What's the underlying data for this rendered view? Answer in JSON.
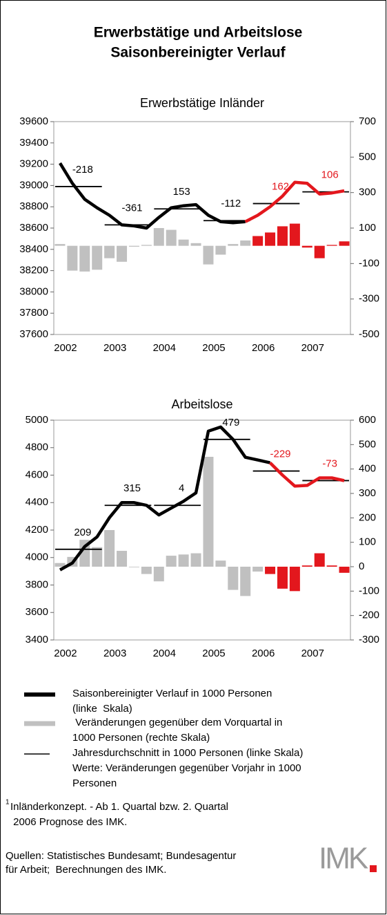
{
  "title": [
    "Erwerbstätige und Arbeitslose",
    "Saisonbereinigter Verlauf"
  ],
  "chart_data": [
    {
      "type": "combo",
      "title": "Erwerbstätige Inländer",
      "categories": [
        "2002",
        null,
        null,
        null,
        "2003",
        null,
        null,
        null,
        "2004",
        null,
        null,
        null,
        "2005",
        null,
        null,
        null,
        "2006",
        null,
        null,
        null,
        "2007",
        null,
        null,
        null
      ],
      "ylim": [
        37600,
        39600
      ],
      "yticks": [
        37600,
        37800,
        38000,
        38200,
        38400,
        38600,
        38800,
        39000,
        39200,
        39400,
        39600
      ],
      "y2lim": [
        -500,
        700
      ],
      "y2ticks": [
        -500,
        -300,
        -100,
        100,
        300,
        500,
        700
      ],
      "series": [
        {
          "type": "bar",
          "axis": "y2",
          "colors": [
            "#c0c0c0",
            "#c0c0c0",
            "#c0c0c0",
            "#c0c0c0",
            "#c0c0c0",
            "#c0c0c0",
            "#c0c0c0",
            "#c0c0c0",
            "#c0c0c0",
            "#c0c0c0",
            "#c0c0c0",
            "#c0c0c0",
            "#c0c0c0",
            "#c0c0c0",
            "#c0c0c0",
            "#c0c0c0",
            "#e3171d",
            "#e3171d",
            "#e3171d",
            "#e3171d",
            "#e3171d",
            "#e3171d",
            "#e3171d",
            "#e3171d"
          ],
          "values": [
            10,
            -140,
            -145,
            -135,
            -70,
            -90,
            -5,
            5,
            100,
            90,
            35,
            15,
            -105,
            -50,
            10,
            30,
            55,
            75,
            110,
            125,
            -10,
            -70,
            5,
            25
          ]
        },
        {
          "type": "line",
          "color": "#000000",
          "values": [
            39210,
            39020,
            38870,
            38790,
            38720,
            38630,
            38620,
            38600,
            38700,
            38790,
            38810,
            38820,
            38720,
            38660,
            38650,
            38660,
            null,
            null,
            null,
            null,
            null,
            null,
            null,
            null
          ]
        },
        {
          "type": "line",
          "color": "#e3171d",
          "values": [
            null,
            null,
            null,
            null,
            null,
            null,
            null,
            null,
            null,
            null,
            null,
            null,
            null,
            null,
            null,
            38660,
            38720,
            38800,
            38900,
            39030,
            39020,
            38920,
            38930,
            38950
          ]
        }
      ],
      "annual": {
        "values": [
          38990,
          38630,
          38780,
          38670,
          38830,
          38940
        ],
        "changes": [
          -218,
          -361,
          153,
          -112,
          162,
          106
        ],
        "colors": [
          "#000000",
          "#000000",
          "#000000",
          "#000000",
          "#e3171d",
          "#e3171d"
        ]
      }
    },
    {
      "type": "combo",
      "title": "Arbeitslose",
      "categories": [
        "2002",
        null,
        null,
        null,
        "2003",
        null,
        null,
        null,
        "2004",
        null,
        null,
        null,
        "2005",
        null,
        null,
        null,
        "2006",
        null,
        null,
        null,
        "2007",
        null,
        null,
        null
      ],
      "ylim": [
        3400,
        5000
      ],
      "yticks": [
        3400,
        3600,
        3800,
        4000,
        4200,
        4400,
        4600,
        4800,
        5000
      ],
      "y2lim": [
        -300,
        600
      ],
      "y2ticks": [
        -300,
        -200,
        -100,
        0,
        100,
        200,
        300,
        400,
        500,
        600
      ],
      "series": [
        {
          "type": "bar",
          "axis": "y2",
          "colors": [
            "#c0c0c0",
            "#c0c0c0",
            "#c0c0c0",
            "#c0c0c0",
            "#c0c0c0",
            "#c0c0c0",
            "#c0c0c0",
            "#c0c0c0",
            "#c0c0c0",
            "#c0c0c0",
            "#c0c0c0",
            "#c0c0c0",
            "#c0c0c0",
            "#c0c0c0",
            "#c0c0c0",
            "#c0c0c0",
            "#c0c0c0",
            "#e3171d",
            "#e3171d",
            "#e3171d",
            "#e3171d",
            "#e3171d",
            "#e3171d",
            "#e3171d"
          ],
          "values": [
            15,
            40,
            110,
            80,
            150,
            65,
            0,
            -30,
            -60,
            45,
            50,
            55,
            450,
            25,
            -95,
            -120,
            -20,
            -30,
            -90,
            -100,
            5,
            55,
            5,
            -25
          ]
        },
        {
          "type": "line",
          "color": "#000000",
          "values": [
            3910,
            3960,
            4080,
            4150,
            4290,
            4400,
            4400,
            4380,
            4310,
            4360,
            4410,
            4470,
            4920,
            4950,
            4860,
            4730,
            4710,
            4690,
            null,
            null,
            null,
            null,
            null,
            null
          ]
        },
        {
          "type": "line",
          "color": "#e3171d",
          "values": [
            null,
            null,
            null,
            null,
            null,
            null,
            null,
            null,
            null,
            null,
            null,
            null,
            null,
            null,
            null,
            null,
            null,
            4690,
            4600,
            4520,
            4525,
            4580,
            4580,
            4560
          ]
        }
      ],
      "annual": {
        "values": [
          4060,
          4380,
          4380,
          4860,
          4630,
          4560
        ],
        "changes": [
          209,
          315,
          4,
          479,
          -229,
          -73
        ],
        "colors": [
          "#000000",
          "#000000",
          "#000000",
          "#000000",
          "#e3171d",
          "#e3171d"
        ]
      }
    }
  ],
  "legend": [
    {
      "lines": [
        "Saisonbereinigter Verlauf in 1000 Personen",
        "(linke  Skala)"
      ]
    },
    {
      "lines": [
        " Veränderungen gegenüber dem Vorquartal in",
        "1000 Personen (rechte Skala)"
      ]
    },
    {
      "lines": [
        "Jahresdurchschnitt in 1000 Personen (linke Skala)",
        "Werte: Veränderungen gegenüber Vorjahr in 1000",
        "Personen"
      ]
    }
  ],
  "footnote": {
    "mark": "1",
    "lines": [
      "Inländerkonzept. - Ab 1. Quartal bzw. 2. Quartal",
      " 2006 Prognose des IMK."
    ]
  },
  "sources": [
    "Quellen: Statistisches Bundesamt; Bundesagentur",
    "für Arbeit;  Berechnungen des IMK."
  ],
  "logo": "IMK"
}
